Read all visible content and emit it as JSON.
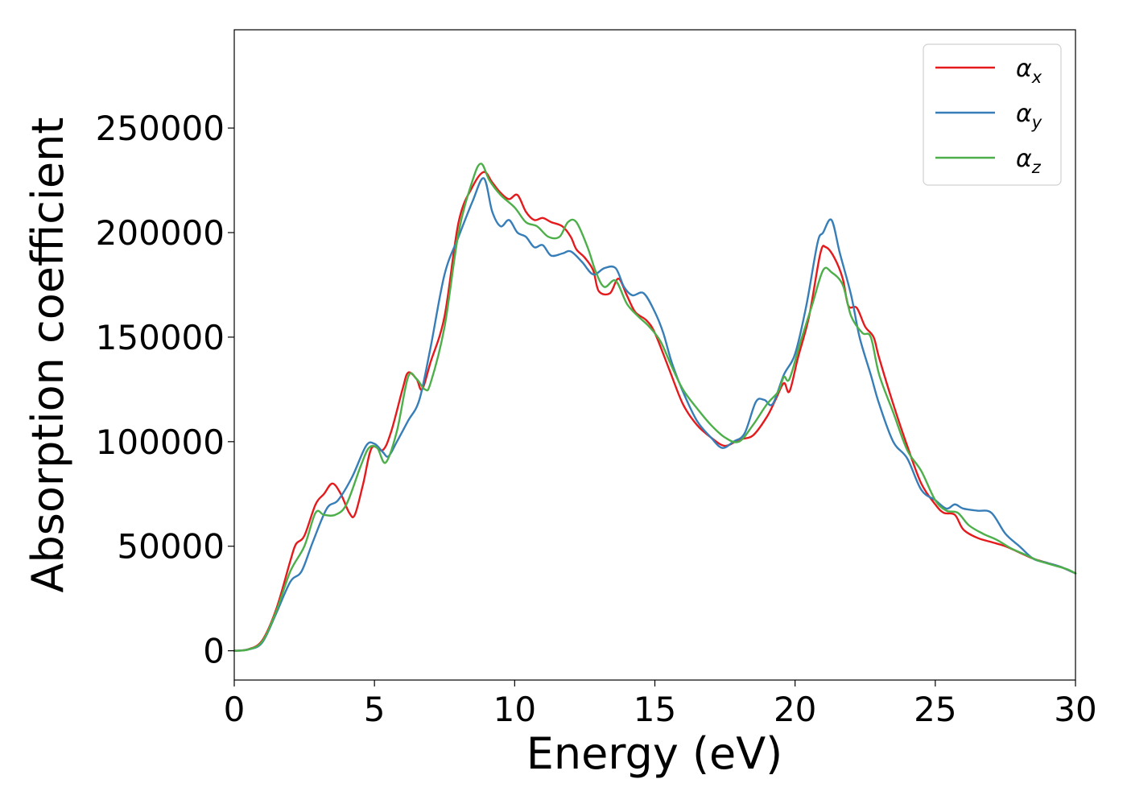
{
  "chart_data": {
    "type": "line",
    "title": "",
    "xlabel": "Energy (eV)",
    "ylabel": "Absorption coefficient",
    "xlim": [
      0,
      30
    ],
    "ylim": [
      -14000,
      297000
    ],
    "xticks": [
      0,
      5,
      10,
      15,
      20,
      25,
      30
    ],
    "xtick_labels": [
      "0",
      "5",
      "10",
      "15",
      "20",
      "25",
      "30"
    ],
    "yticks": [
      0,
      50000,
      100000,
      150000,
      200000,
      250000
    ],
    "ytick_labels": [
      "0",
      "50000",
      "100000",
      "150000",
      "200000",
      "250000"
    ],
    "grid": false,
    "legend_position": "top-right",
    "series": [
      {
        "name": "α",
        "subscript": "x",
        "color": "#e41a1c",
        "points": [
          [
            0,
            0
          ],
          [
            0.5,
            700
          ],
          [
            1.0,
            5000
          ],
          [
            1.5,
            20000
          ],
          [
            2.0,
            43000
          ],
          [
            2.2,
            51000
          ],
          [
            2.5,
            55000
          ],
          [
            2.9,
            70000
          ],
          [
            3.2,
            75000
          ],
          [
            3.5,
            80000
          ],
          [
            3.8,
            75000
          ],
          [
            4.1,
            66000
          ],
          [
            4.3,
            65000
          ],
          [
            4.6,
            80000
          ],
          [
            4.9,
            97000
          ],
          [
            5.3,
            96000
          ],
          [
            5.6,
            105000
          ],
          [
            6.0,
            125000
          ],
          [
            6.2,
            133000
          ],
          [
            6.5,
            130000
          ],
          [
            6.7,
            125000
          ],
          [
            7.0,
            138000
          ],
          [
            7.5,
            160000
          ],
          [
            8.0,
            205000
          ],
          [
            8.5,
            222000
          ],
          [
            8.9,
            229000
          ],
          [
            9.2,
            224000
          ],
          [
            9.5,
            219000
          ],
          [
            9.8,
            216000
          ],
          [
            10.1,
            218000
          ],
          [
            10.4,
            210000
          ],
          [
            10.7,
            206000
          ],
          [
            11.0,
            207000
          ],
          [
            11.3,
            205000
          ],
          [
            11.7,
            203000
          ],
          [
            12.0,
            198000
          ],
          [
            12.2,
            192000
          ],
          [
            12.5,
            188000
          ],
          [
            12.8,
            182000
          ],
          [
            13.0,
            172000
          ],
          [
            13.4,
            171000
          ],
          [
            13.7,
            178000
          ],
          [
            14.0,
            170000
          ],
          [
            14.3,
            162000
          ],
          [
            14.7,
            158000
          ],
          [
            15.0,
            152000
          ],
          [
            15.5,
            135000
          ],
          [
            16.0,
            118000
          ],
          [
            16.5,
            108000
          ],
          [
            17.0,
            102000
          ],
          [
            17.5,
            98000
          ],
          [
            18.0,
            101000
          ],
          [
            18.5,
            103000
          ],
          [
            19.0,
            112000
          ],
          [
            19.3,
            120000
          ],
          [
            19.6,
            128000
          ],
          [
            19.8,
            124000
          ],
          [
            20.1,
            140000
          ],
          [
            20.5,
            160000
          ],
          [
            20.9,
            190000
          ],
          [
            21.1,
            193000
          ],
          [
            21.4,
            188000
          ],
          [
            21.7,
            178000
          ],
          [
            21.9,
            165000
          ],
          [
            22.2,
            164000
          ],
          [
            22.5,
            155000
          ],
          [
            22.8,
            150000
          ],
          [
            23.0,
            140000
          ],
          [
            23.5,
            118000
          ],
          [
            24.0,
            98000
          ],
          [
            24.5,
            80000
          ],
          [
            25.0,
            70000
          ],
          [
            25.3,
            66000
          ],
          [
            25.7,
            65000
          ],
          [
            26.0,
            58000
          ],
          [
            26.5,
            54000
          ],
          [
            27.0,
            52000
          ],
          [
            27.5,
            50000
          ],
          [
            28.0,
            47000
          ],
          [
            28.5,
            44000
          ],
          [
            29.0,
            42000
          ],
          [
            29.5,
            40000
          ],
          [
            30.0,
            37000
          ]
        ]
      },
      {
        "name": "α",
        "subscript": "y",
        "color": "#377eb8",
        "points": [
          [
            0,
            0
          ],
          [
            0.5,
            600
          ],
          [
            1.0,
            4000
          ],
          [
            1.5,
            18000
          ],
          [
            2.0,
            33000
          ],
          [
            2.4,
            38000
          ],
          [
            2.8,
            52000
          ],
          [
            3.3,
            68000
          ],
          [
            3.7,
            72000
          ],
          [
            4.2,
            83000
          ],
          [
            4.7,
            98000
          ],
          [
            5.0,
            99000
          ],
          [
            5.3,
            95000
          ],
          [
            5.5,
            93000
          ],
          [
            5.8,
            100000
          ],
          [
            6.2,
            110000
          ],
          [
            6.6,
            120000
          ],
          [
            7.0,
            145000
          ],
          [
            7.5,
            180000
          ],
          [
            8.0,
            198000
          ],
          [
            8.5,
            215000
          ],
          [
            8.9,
            226000
          ],
          [
            9.2,
            210000
          ],
          [
            9.5,
            203000
          ],
          [
            9.8,
            206000
          ],
          [
            10.1,
            200000
          ],
          [
            10.4,
            198000
          ],
          [
            10.7,
            193000
          ],
          [
            11.0,
            194000
          ],
          [
            11.3,
            189000
          ],
          [
            11.7,
            190000
          ],
          [
            12.0,
            191000
          ],
          [
            12.4,
            186000
          ],
          [
            12.8,
            180000
          ],
          [
            13.2,
            183000
          ],
          [
            13.6,
            183000
          ],
          [
            13.9,
            174000
          ],
          [
            14.2,
            170000
          ],
          [
            14.6,
            171000
          ],
          [
            15.0,
            162000
          ],
          [
            15.3,
            152000
          ],
          [
            15.6,
            138000
          ],
          [
            16.0,
            124000
          ],
          [
            16.5,
            110000
          ],
          [
            17.0,
            102000
          ],
          [
            17.4,
            97000
          ],
          [
            17.8,
            100000
          ],
          [
            18.2,
            104000
          ],
          [
            18.6,
            119000
          ],
          [
            18.9,
            120000
          ],
          [
            19.2,
            118000
          ],
          [
            19.6,
            132000
          ],
          [
            20.0,
            142000
          ],
          [
            20.4,
            165000
          ],
          [
            20.8,
            195000
          ],
          [
            21.0,
            200000
          ],
          [
            21.3,
            206000
          ],
          [
            21.6,
            190000
          ],
          [
            22.0,
            170000
          ],
          [
            22.3,
            150000
          ],
          [
            22.7,
            132000
          ],
          [
            23.0,
            118000
          ],
          [
            23.5,
            100000
          ],
          [
            24.0,
            92000
          ],
          [
            24.5,
            77000
          ],
          [
            25.0,
            72000
          ],
          [
            25.4,
            68000
          ],
          [
            25.7,
            70000
          ],
          [
            26.0,
            68000
          ],
          [
            26.5,
            67000
          ],
          [
            27.0,
            66000
          ],
          [
            27.5,
            56000
          ],
          [
            28.0,
            50000
          ],
          [
            28.5,
            44000
          ],
          [
            29.0,
            42000
          ],
          [
            29.5,
            40000
          ],
          [
            30.0,
            37000
          ]
        ]
      },
      {
        "name": "α",
        "subscript": "z",
        "color": "#4daf4a",
        "points": [
          [
            0,
            0
          ],
          [
            0.5,
            600
          ],
          [
            1.0,
            4500
          ],
          [
            1.5,
            19000
          ],
          [
            2.0,
            38000
          ],
          [
            2.5,
            50000
          ],
          [
            2.9,
            66000
          ],
          [
            3.2,
            65000
          ],
          [
            3.6,
            65000
          ],
          [
            4.0,
            70000
          ],
          [
            4.5,
            88000
          ],
          [
            4.8,
            97000
          ],
          [
            5.1,
            97000
          ],
          [
            5.4,
            90000
          ],
          [
            5.8,
            105000
          ],
          [
            6.2,
            131000
          ],
          [
            6.5,
            130000
          ],
          [
            6.8,
            125000
          ],
          [
            7.0,
            128000
          ],
          [
            7.5,
            155000
          ],
          [
            8.0,
            200000
          ],
          [
            8.5,
            225000
          ],
          [
            8.8,
            233000
          ],
          [
            9.1,
            225000
          ],
          [
            9.5,
            218000
          ],
          [
            10.0,
            212000
          ],
          [
            10.4,
            205000
          ],
          [
            10.8,
            203000
          ],
          [
            11.2,
            198000
          ],
          [
            11.6,
            198000
          ],
          [
            11.9,
            205000
          ],
          [
            12.2,
            205000
          ],
          [
            12.6,
            193000
          ],
          [
            12.9,
            181000
          ],
          [
            13.2,
            174000
          ],
          [
            13.6,
            177000
          ],
          [
            14.0,
            166000
          ],
          [
            14.4,
            160000
          ],
          [
            14.8,
            155000
          ],
          [
            15.2,
            148000
          ],
          [
            15.6,
            136000
          ],
          [
            16.0,
            125000
          ],
          [
            16.5,
            116000
          ],
          [
            17.0,
            108000
          ],
          [
            17.5,
            102000
          ],
          [
            18.0,
            100000
          ],
          [
            18.5,
            108000
          ],
          [
            19.0,
            118000
          ],
          [
            19.4,
            124000
          ],
          [
            19.6,
            131000
          ],
          [
            19.8,
            130000
          ],
          [
            20.2,
            148000
          ],
          [
            20.6,
            165000
          ],
          [
            21.0,
            182000
          ],
          [
            21.3,
            181000
          ],
          [
            21.7,
            175000
          ],
          [
            22.0,
            160000
          ],
          [
            22.4,
            152000
          ],
          [
            22.7,
            150000
          ],
          [
            23.0,
            132000
          ],
          [
            23.5,
            114000
          ],
          [
            24.0,
            96000
          ],
          [
            24.5,
            86000
          ],
          [
            25.0,
            72000
          ],
          [
            25.4,
            67000
          ],
          [
            25.8,
            66000
          ],
          [
            26.2,
            60000
          ],
          [
            26.7,
            56000
          ],
          [
            27.2,
            53000
          ],
          [
            27.7,
            49000
          ],
          [
            28.2,
            46000
          ],
          [
            28.7,
            43000
          ],
          [
            29.2,
            41000
          ],
          [
            29.7,
            39000
          ],
          [
            30.0,
            37000
          ]
        ]
      }
    ]
  }
}
